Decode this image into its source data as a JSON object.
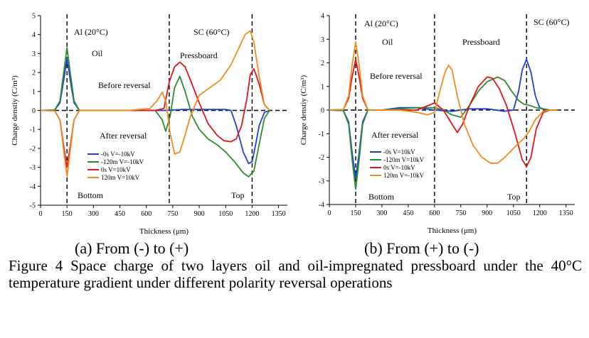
{
  "caption": "Figure 4 Space charge of two layers oil and oil-impregnated pressboard under the 40°C temperature gradient under different polarity reversal operations",
  "chart_data": [
    {
      "type": "line",
      "subtitle": "(a) From (-) to (+)",
      "xlabel": "Thickness (μm)",
      "ylabel": "Charge denstiy (C/m³)",
      "xlim": [
        0,
        1400
      ],
      "ylim": [
        -5,
        5
      ],
      "xticks": [
        0,
        150,
        300,
        450,
        600,
        750,
        900,
        1050,
        1200,
        1350
      ],
      "yticks": [
        -5,
        -4,
        -3,
        -2,
        -1,
        0,
        1,
        2,
        3,
        4,
        5
      ],
      "grid": false,
      "legend_position": "bottom-left",
      "annotations": [
        "Al (20°C)",
        "SC (60°C)",
        "Oil",
        "Pressboard",
        "Before reversal",
        "After reversal",
        "Bottom",
        "Top"
      ],
      "vlines": [
        150,
        730,
        1200
      ],
      "series": [
        {
          "name": "-0s    V=-10kV",
          "color": "#1f3fd8",
          "x": [
            0,
            80,
            110,
            130,
            150,
            170,
            190,
            220,
            300,
            500,
            700,
            800,
            900,
            1000,
            1050,
            1080,
            1110,
            1150,
            1180,
            1200,
            1220,
            1240,
            1270,
            1300
          ],
          "y": [
            0,
            0.02,
            0.4,
            1.5,
            2.75,
            1.5,
            0.4,
            0,
            0,
            0,
            0,
            0.05,
            0.05,
            0.05,
            0.05,
            0,
            -0.8,
            -2.2,
            -2.8,
            -2.7,
            -1.8,
            -0.8,
            -0.1,
            0
          ]
        },
        {
          "name": "-120m V=-10kV",
          "color": "#2e8b2e",
          "x": [
            0,
            80,
            110,
            130,
            150,
            170,
            190,
            220,
            300,
            500,
            650,
            690,
            710,
            735,
            760,
            790,
            820,
            860,
            900,
            950,
            1000,
            1050,
            1100,
            1150,
            1180,
            1210,
            1240,
            1270,
            1300
          ],
          "y": [
            0,
            0.02,
            0.5,
            1.9,
            3.3,
            1.9,
            0.5,
            0,
            0,
            0,
            0,
            -0.5,
            -1.1,
            -0.3,
            1.2,
            1.8,
            1.0,
            -0.3,
            -1.0,
            -1.5,
            -1.8,
            -2.2,
            -2.7,
            -3.3,
            -3.5,
            -3.2,
            -1.8,
            -0.4,
            0
          ]
        },
        {
          "name": "0s       V=10kV",
          "color": "#e0141a",
          "x": [
            0,
            80,
            110,
            130,
            150,
            170,
            190,
            220,
            300,
            500,
            650,
            700,
            730,
            760,
            790,
            820,
            850,
            900,
            950,
            1000,
            1040,
            1080,
            1110,
            1140,
            1170,
            1190,
            1210,
            1240,
            1270,
            1300
          ],
          "y": [
            0,
            -0.02,
            -0.5,
            -1.8,
            -3.0,
            -1.8,
            -0.5,
            0,
            0,
            0,
            0,
            0.1,
            1.5,
            2.3,
            2.55,
            2.3,
            1.6,
            0.4,
            -0.7,
            -1.3,
            -1.6,
            -1.65,
            -1.5,
            -0.8,
            0.6,
            1.9,
            2.2,
            1.4,
            0.3,
            0
          ]
        },
        {
          "name": "120m  V=10kV",
          "color": "#f08c1e",
          "x": [
            0,
            80,
            110,
            130,
            150,
            170,
            190,
            220,
            300,
            500,
            620,
            660,
            690,
            710,
            735,
            760,
            790,
            820,
            850,
            900,
            960,
            1020,
            1080,
            1130,
            1160,
            1190,
            1210,
            1240,
            1270,
            1300
          ],
          "y": [
            0,
            -0.02,
            -0.5,
            -2.0,
            -3.5,
            -2.0,
            -0.5,
            0,
            0,
            0,
            0.1,
            0.5,
            0.95,
            0.5,
            -1.2,
            -2.3,
            -2.2,
            -1.3,
            -0.3,
            0.8,
            1.2,
            1.6,
            2.4,
            3.4,
            4.0,
            4.2,
            3.6,
            1.8,
            0.3,
            0
          ]
        }
      ]
    },
    {
      "type": "line",
      "subtitle": "(b) From (+) to (-)",
      "xlabel": "Thickness (μm)",
      "ylabel": "Charge denstiy (C/m³)",
      "xlim": [
        0,
        1400
      ],
      "ylim": [
        -4,
        4
      ],
      "xticks": [
        0,
        150,
        300,
        450,
        600,
        750,
        900,
        1050,
        1200,
        1350
      ],
      "yticks": [
        -4,
        -3,
        -2,
        -1,
        0,
        1,
        2,
        3,
        4
      ],
      "grid": false,
      "legend_position": "bottom-left",
      "annotations": [
        "Al (20°C)",
        "SC (60°C)",
        "Oil",
        "Pressboard",
        "Before reversal",
        "After reversal",
        "Bottom",
        "Top"
      ],
      "vlines": [
        150,
        600,
        1125
      ],
      "series": [
        {
          "name": "-0s    V=10kV",
          "color": "#1f3fd8",
          "x": [
            0,
            80,
            110,
            130,
            150,
            170,
            190,
            220,
            300,
            400,
            500,
            600,
            700,
            800,
            900,
            1000,
            1050,
            1080,
            1100,
            1125,
            1150,
            1175,
            1200,
            1240,
            1300
          ],
          "y": [
            0,
            -0.02,
            -0.5,
            -1.8,
            -2.9,
            -1.8,
            -0.5,
            0,
            0,
            0.1,
            0.1,
            0,
            -0.05,
            0.05,
            0.05,
            -0.05,
            0,
            0.8,
            1.7,
            2.15,
            1.6,
            0.6,
            0.1,
            0,
            0
          ]
        },
        {
          "name": "-120m V=10kV",
          "color": "#2e8b2e",
          "x": [
            0,
            80,
            110,
            130,
            150,
            170,
            190,
            220,
            300,
            400,
            500,
            600,
            650,
            700,
            750,
            800,
            850,
            900,
            960,
            1000,
            1040,
            1080,
            1110,
            1140,
            1180,
            1220,
            1260,
            1300
          ],
          "y": [
            0,
            -0.02,
            -0.6,
            -2.1,
            -3.35,
            -2.1,
            -0.6,
            0,
            0,
            0.05,
            0.1,
            0.1,
            0,
            -0.2,
            -0.3,
            0.2,
            0.8,
            1.2,
            1.4,
            1.25,
            0.8,
            0.4,
            0.25,
            0.2,
            0.1,
            0.05,
            0,
            0
          ]
        },
        {
          "name": "0s       V=-10kV",
          "color": "#e0141a",
          "x": [
            0,
            80,
            110,
            130,
            150,
            170,
            190,
            220,
            300,
            400,
            500,
            600,
            650,
            700,
            730,
            760,
            800,
            850,
            900,
            930,
            970,
            1010,
            1060,
            1100,
            1125,
            1150,
            1180,
            1220,
            1260,
            1300
          ],
          "y": [
            0,
            0.02,
            0.5,
            1.4,
            2.15,
            1.4,
            0.5,
            0,
            0,
            0,
            0,
            0.3,
            0,
            -0.6,
            -0.95,
            -0.6,
            0.2,
            1.0,
            1.4,
            1.35,
            0.9,
            0.2,
            -1.0,
            -2.1,
            -2.4,
            -2.0,
            -0.8,
            -0.1,
            0,
            0
          ]
        },
        {
          "name": "120m  V=-10kV",
          "color": "#f08c1e",
          "x": [
            0,
            80,
            110,
            130,
            150,
            170,
            190,
            220,
            300,
            400,
            500,
            560,
            600,
            630,
            660,
            680,
            700,
            730,
            770,
            820,
            870,
            920,
            960,
            1000,
            1040,
            1080,
            1110,
            1140,
            1175,
            1220,
            1260,
            1300
          ],
          "y": [
            0,
            0.02,
            0.6,
            1.9,
            2.9,
            1.9,
            0.6,
            0,
            0,
            0,
            -0.1,
            -0.2,
            -0.1,
            0.8,
            1.6,
            1.9,
            1.7,
            0.6,
            -0.6,
            -1.5,
            -2.0,
            -2.25,
            -2.25,
            -2.0,
            -1.7,
            -1.4,
            -1.2,
            -0.9,
            -0.4,
            -0.05,
            0,
            0
          ]
        }
      ]
    }
  ]
}
